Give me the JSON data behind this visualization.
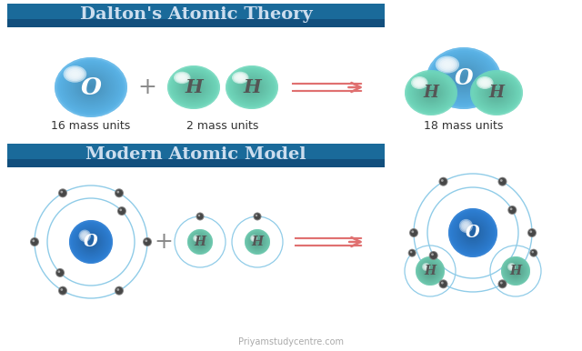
{
  "title1": "Dalton's Atomic Theory",
  "title2": "Modern Atomic Model",
  "header_bg_top": "#1a6a9a",
  "header_bg_bot": "#0d3d6b",
  "header_text": "#ccddee",
  "bg_color": "#ffffff",
  "dalton_O_color": "#5ab4e8",
  "dalton_H_color": "#70d8bc",
  "modern_O_color": "#2d7fd4",
  "modern_H_color": "#6dc8ae",
  "orbit_color": "#90cce8",
  "electron_dark": "#555555",
  "electron_light": "#888888",
  "arrow_color": "#e07070",
  "label1": "16 mass units",
  "label2": "2 mass units",
  "label3": "18 mass units",
  "watermark": "Priyamstudycentre.com",
  "plus_color": "#888888",
  "label_color": "#333333"
}
